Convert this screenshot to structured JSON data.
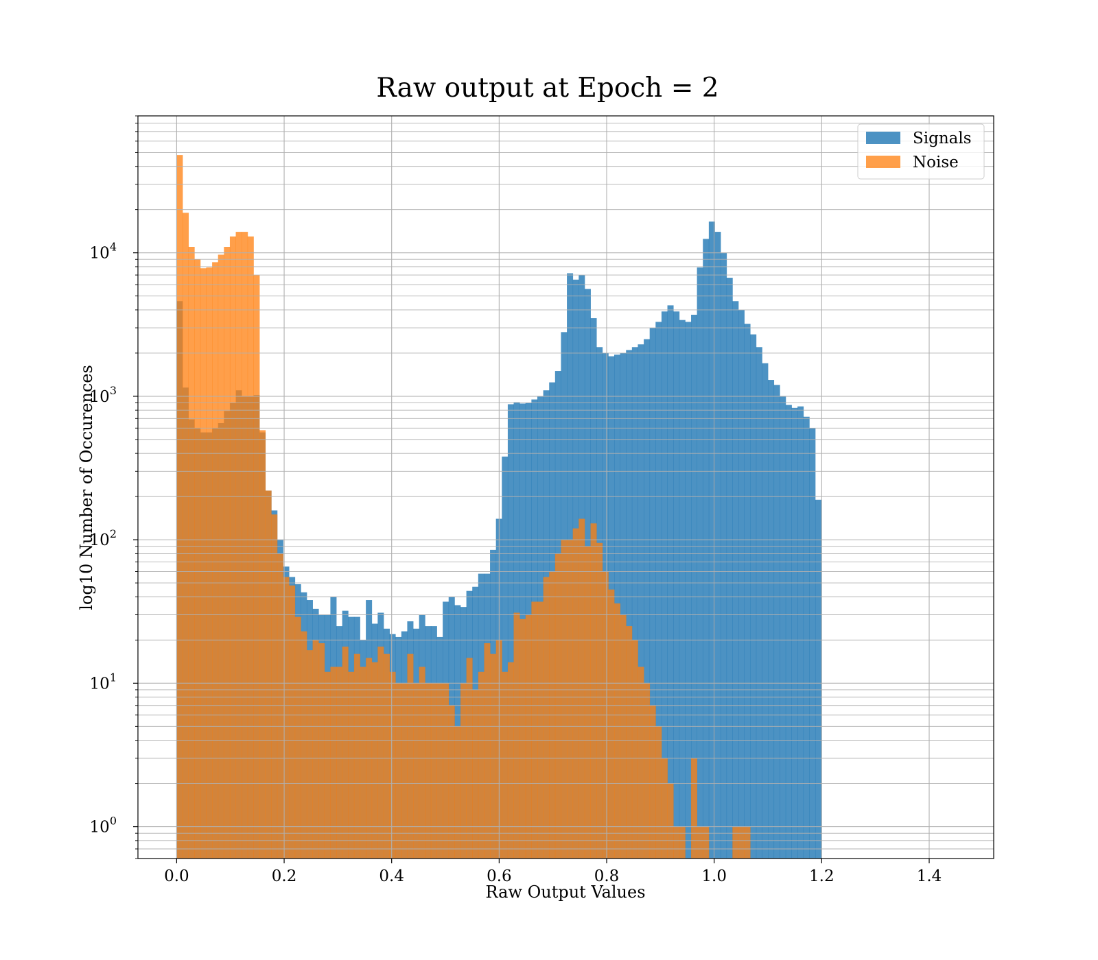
{
  "chart_data": {
    "type": "bar",
    "title": "Raw output at Epoch = 2",
    "xlabel": "Raw Output Values",
    "ylabel": "log10 Number of Occurences",
    "yscale": "log",
    "xlim": [
      -0.072,
      1.52
    ],
    "ylim": [
      0.6,
      90000
    ],
    "grid": true,
    "legend_position": "top-right",
    "x_ticks": [
      "0.0",
      "0.2",
      "0.4",
      "0.6",
      "0.8",
      "1.0",
      "1.2",
      "1.4"
    ],
    "x_tick_values": [
      0.0,
      0.2,
      0.4,
      0.6,
      0.8,
      1.0,
      1.2,
      1.4
    ],
    "y_tick_exponents": [
      0,
      1,
      2,
      3,
      4
    ],
    "bin_edges": {
      "start": 0.0,
      "step": 0.011
    },
    "series": [
      {
        "name": "Signals",
        "color": "#1f77b4",
        "opacity": 0.8,
        "values": [
          4600,
          1150,
          690,
          600,
          560,
          560,
          600,
          650,
          790,
          900,
          1100,
          1000,
          1000,
          1020,
          560,
          220,
          160,
          100,
          65,
          55,
          49,
          43,
          38,
          33,
          30,
          30,
          40,
          25,
          32,
          29,
          29,
          20,
          38,
          26,
          31,
          24,
          22,
          21,
          23,
          27,
          24,
          30,
          25,
          25,
          21,
          37,
          40,
          35,
          34,
          44,
          47,
          58,
          58,
          85,
          140,
          380,
          880,
          910,
          890,
          900,
          950,
          1000,
          1100,
          1250,
          1500,
          2800,
          7200,
          6500,
          7000,
          5600,
          3500,
          2200,
          2000,
          1900,
          1950,
          2000,
          2100,
          2200,
          2300,
          2500,
          3000,
          3300,
          3900,
          4300,
          3900,
          3400,
          3300,
          3700,
          7900,
          12500,
          16500,
          14000,
          10000,
          6700,
          4600,
          4000,
          3200,
          2700,
          2200,
          1700,
          1300,
          1200,
          1000,
          870,
          830,
          850,
          720,
          600,
          190
        ]
      },
      {
        "name": "Noise",
        "color": "#ff7f0e",
        "opacity": 0.75,
        "values": [
          48000,
          19000,
          11000,
          9000,
          7800,
          7900,
          8600,
          9700,
          11000,
          13000,
          14000,
          14000,
          13000,
          7000,
          580,
          220,
          150,
          80,
          55,
          48,
          29,
          23,
          17,
          20,
          19,
          12,
          13,
          13,
          18,
          12,
          16,
          13,
          15,
          14,
          18,
          16,
          12,
          10,
          10,
          16,
          10,
          13,
          10,
          10,
          10,
          10,
          7,
          5,
          10,
          15,
          9,
          12,
          19,
          16,
          20,
          12,
          14,
          31,
          28,
          30,
          37,
          37,
          55,
          60,
          80,
          100,
          100,
          120,
          140,
          90,
          130,
          95,
          60,
          45,
          36,
          30,
          25,
          20,
          13,
          10,
          7,
          5,
          3,
          2,
          1,
          1,
          0,
          3,
          1,
          1,
          0,
          0,
          0,
          0,
          1,
          1,
          1,
          0,
          0,
          0,
          0,
          0,
          0,
          0,
          0,
          0,
          0,
          0,
          0,
          0
        ]
      }
    ]
  }
}
